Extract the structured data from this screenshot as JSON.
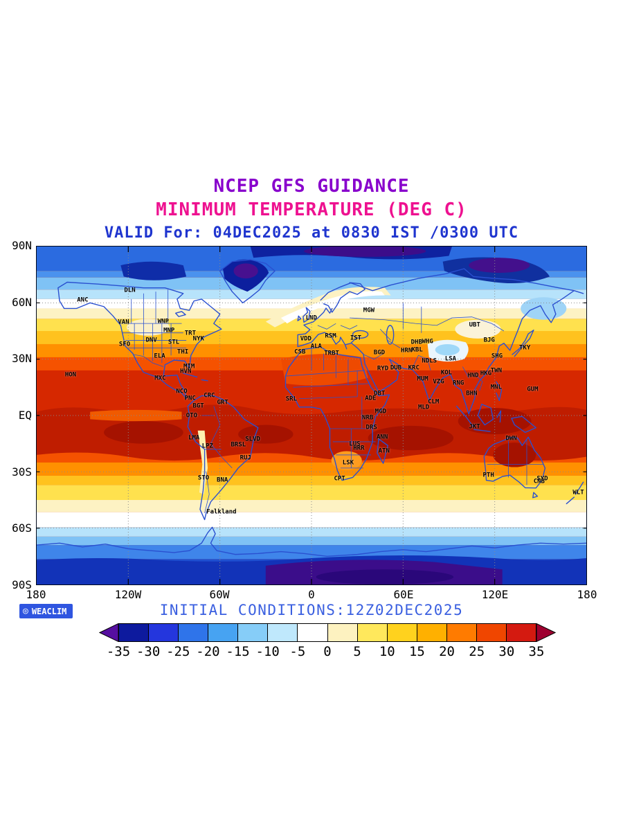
{
  "titles": {
    "line1": "NCEP GFS GUIDANCE",
    "line2": "MINIMUM TEMPERATURE (DEG C)",
    "line3": "VALID For: 04DEC2025 at 0830 IST /0300 UTC"
  },
  "colors": {
    "title1": "#8800cc",
    "title2": "#ee1190",
    "title3": "#1f35cf",
    "initial_conditions_text": "#3a5fe0",
    "logo_background": "#2f55e0",
    "coastline": "#2a50d0"
  },
  "axes": {
    "lat_labels": [
      "90N",
      "60N",
      "30N",
      "EQ",
      "30S",
      "60S",
      "90S"
    ],
    "lon_labels": [
      "180",
      "120W",
      "60W",
      "0",
      "60E",
      "120E",
      "180"
    ]
  },
  "footer": {
    "initial_conditions": "INITIAL CONDITIONS:12Z02DEC2025",
    "logo_text": "WEACLIM",
    "logo_icon": "◎"
  },
  "colorbar": {
    "units": "DEG C",
    "tick_labels": [
      "-35",
      "-30",
      "-25",
      "-20",
      "-15",
      "-10",
      "-5",
      "0",
      "5",
      "10",
      "15",
      "20",
      "25",
      "30",
      "35"
    ],
    "segment_colors": [
      "#0d1a9e",
      "#2436dd",
      "#2f74ea",
      "#47a3f2",
      "#86cdf8",
      "#bfe8fc",
      "#ffffff",
      "#fdf2c0",
      "#ffe85c",
      "#ffd21e",
      "#ffb000",
      "#ff7b00",
      "#f04600",
      "#d41a10"
    ],
    "left_arrow_color": "#560fa0",
    "right_arrow_color": "#9e0030"
  },
  "map": {
    "stations": [
      {
        "code": "DLN",
        "lon": -119.0,
        "lat": 66.5
      },
      {
        "code": "ANC",
        "lon": -149.9,
        "lat": 61.2
      },
      {
        "code": "VAN",
        "lon": -123.1,
        "lat": 49.3
      },
      {
        "code": "WNP",
        "lon": -97.1,
        "lat": 49.9
      },
      {
        "code": "MNP",
        "lon": -93.3,
        "lat": 45.0
      },
      {
        "code": "TRT",
        "lon": -79.4,
        "lat": 43.7
      },
      {
        "code": "NYK",
        "lon": -74.0,
        "lat": 40.7
      },
      {
        "code": "SFO",
        "lon": -122.4,
        "lat": 37.8
      },
      {
        "code": "DNV",
        "lon": -104.9,
        "lat": 39.7
      },
      {
        "code": "STL",
        "lon": -90.2,
        "lat": 38.6
      },
      {
        "code": "ELA",
        "lon": -99.5,
        "lat": 31.5
      },
      {
        "code": "THI",
        "lon": -84.3,
        "lat": 33.5
      },
      {
        "code": "MIM",
        "lon": -80.2,
        "lat": 25.8
      },
      {
        "code": "HVN",
        "lon": -82.4,
        "lat": 23.1
      },
      {
        "code": "HON",
        "lon": -157.8,
        "lat": 21.3
      },
      {
        "code": "MXC",
        "lon": -99.1,
        "lat": 19.4
      },
      {
        "code": "NCO",
        "lon": -85.0,
        "lat": 12.4
      },
      {
        "code": "CRC",
        "lon": -66.9,
        "lat": 10.5
      },
      {
        "code": "GRT",
        "lon": -58.2,
        "lat": 6.8
      },
      {
        "code": "PNC",
        "lon": -79.5,
        "lat": 9.0
      },
      {
        "code": "BGT",
        "lon": -74.1,
        "lat": 4.7
      },
      {
        "code": "OTO",
        "lon": -78.5,
        "lat": -0.2
      },
      {
        "code": "LMA",
        "lon": -77.0,
        "lat": -12.0
      },
      {
        "code": "LPZ",
        "lon": -68.1,
        "lat": -16.5
      },
      {
        "code": "BRSL",
        "lon": -47.9,
        "lat": -15.8
      },
      {
        "code": "SLVD",
        "lon": -38.5,
        "lat": -12.9
      },
      {
        "code": "RUJ",
        "lon": -43.2,
        "lat": -22.9
      },
      {
        "code": "STO",
        "lon": -70.7,
        "lat": -33.5
      },
      {
        "code": "BNA",
        "lon": -58.4,
        "lat": -34.6
      },
      {
        "code": "Falkland",
        "lon": -59.0,
        "lat": -51.7
      },
      {
        "code": "LND",
        "lon": -0.1,
        "lat": 51.5
      },
      {
        "code": "MGW",
        "lon": 37.6,
        "lat": 55.8
      },
      {
        "code": "VDD",
        "lon": -3.7,
        "lat": 40.4
      },
      {
        "code": "RSM",
        "lon": 12.5,
        "lat": 41.9
      },
      {
        "code": "IST",
        "lon": 29.0,
        "lat": 41.0
      },
      {
        "code": "ALA",
        "lon": 3.1,
        "lat": 36.7
      },
      {
        "code": "CSB",
        "lon": -7.6,
        "lat": 33.6
      },
      {
        "code": "TRBT",
        "lon": 13.2,
        "lat": 32.9
      },
      {
        "code": "BGD",
        "lon": 44.4,
        "lat": 33.3
      },
      {
        "code": "SRL",
        "lon": -13.2,
        "lat": 8.5
      },
      {
        "code": "ADE",
        "lon": 38.7,
        "lat": 9.0
      },
      {
        "code": "NRB",
        "lon": 36.8,
        "lat": -1.3
      },
      {
        "code": "MGD",
        "lon": 45.3,
        "lat": 2.0
      },
      {
        "code": "DRS",
        "lon": 39.3,
        "lat": -6.8
      },
      {
        "code": "ANN",
        "lon": 46.3,
        "lat": -11.7
      },
      {
        "code": "ATN",
        "lon": 47.5,
        "lat": -19.0
      },
      {
        "code": "LUS",
        "lon": 28.3,
        "lat": -15.4
      },
      {
        "code": "HRR",
        "lon": 31.0,
        "lat": -17.8
      },
      {
        "code": "LSK",
        "lon": 24.0,
        "lat": -25.5
      },
      {
        "code": "CPT",
        "lon": 18.4,
        "lat": -33.9
      },
      {
        "code": "DBT",
        "lon": 44.5,
        "lat": 11.5
      },
      {
        "code": "RYD",
        "lon": 46.7,
        "lat": 24.6
      },
      {
        "code": "DUB",
        "lon": 55.3,
        "lat": 25.2
      },
      {
        "code": "KRC",
        "lon": 67.0,
        "lat": 24.9
      },
      {
        "code": "DHB",
        "lon": 68.8,
        "lat": 38.6
      },
      {
        "code": "WHG",
        "lon": 76.0,
        "lat": 39.0
      },
      {
        "code": "KBL",
        "lon": 69.2,
        "lat": 34.5
      },
      {
        "code": "HRN",
        "lon": 62.2,
        "lat": 34.3
      },
      {
        "code": "NDLS",
        "lon": 77.2,
        "lat": 28.6
      },
      {
        "code": "LSA",
        "lon": 91.1,
        "lat": 29.7
      },
      {
        "code": "KOL",
        "lon": 88.4,
        "lat": 22.6
      },
      {
        "code": "MUM",
        "lon": 72.8,
        "lat": 19.1
      },
      {
        "code": "VZG",
        "lon": 83.2,
        "lat": 17.7
      },
      {
        "code": "RNG",
        "lon": 96.2,
        "lat": 16.8
      },
      {
        "code": "HND",
        "lon": 105.8,
        "lat": 21.0
      },
      {
        "code": "HKG",
        "lon": 114.2,
        "lat": 22.3
      },
      {
        "code": "SHG",
        "lon": 121.5,
        "lat": 31.2
      },
      {
        "code": "TWN",
        "lon": 121.0,
        "lat": 23.7
      },
      {
        "code": "TKY",
        "lon": 139.7,
        "lat": 35.7
      },
      {
        "code": "BJG",
        "lon": 116.4,
        "lat": 39.9
      },
      {
        "code": "UBT",
        "lon": 106.9,
        "lat": 47.9
      },
      {
        "code": "MNL",
        "lon": 121.0,
        "lat": 14.6
      },
      {
        "code": "BHN",
        "lon": 104.9,
        "lat": 11.6
      },
      {
        "code": "CLM",
        "lon": 79.9,
        "lat": 6.9
      },
      {
        "code": "MLD",
        "lon": 73.5,
        "lat": 4.2
      },
      {
        "code": "GUM",
        "lon": 144.8,
        "lat": 13.5
      },
      {
        "code": "JKT",
        "lon": 106.8,
        "lat": -6.2
      },
      {
        "code": "DWN",
        "lon": 130.8,
        "lat": -12.5
      },
      {
        "code": "PTH",
        "lon": 115.9,
        "lat": -32.0
      },
      {
        "code": "SYD",
        "lon": 151.2,
        "lat": -33.9
      },
      {
        "code": "CNB",
        "lon": 149.1,
        "lat": -35.3
      },
      {
        "code": "WLT",
        "lon": 174.8,
        "lat": -41.3
      }
    ]
  }
}
